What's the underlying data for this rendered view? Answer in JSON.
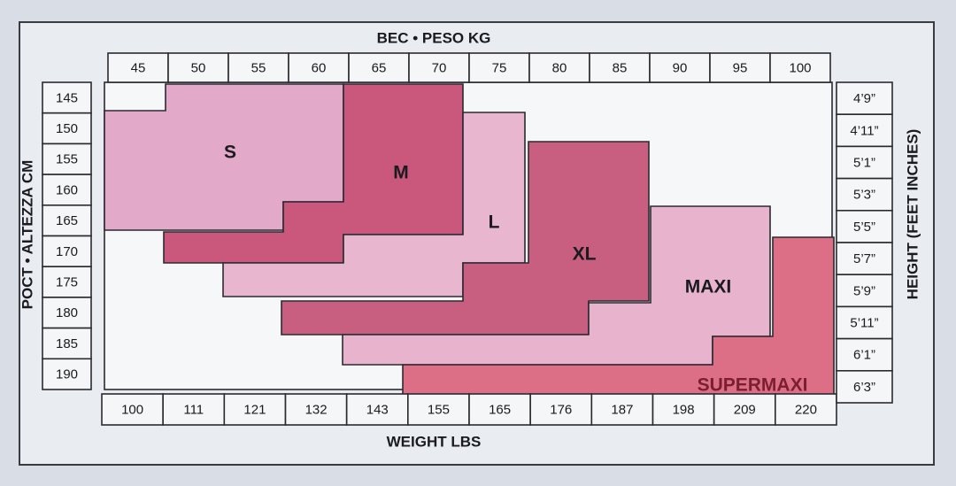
{
  "header": {
    "weight_kg_title": "BEC • PESO KG",
    "weight_lbs_title": "WEIGHT LBS",
    "height_cm_title": "POCT • ALTEZZA CM",
    "height_in_title": "HEIGHT (FEET INCHES)"
  },
  "weight_kg": [
    45,
    50,
    55,
    60,
    65,
    70,
    75,
    80,
    85,
    90,
    95,
    100
  ],
  "weight_lbs": [
    100,
    111,
    121,
    132,
    143,
    155,
    165,
    176,
    187,
    198,
    209,
    220
  ],
  "height_cm": [
    145,
    150,
    155,
    160,
    165,
    170,
    175,
    180,
    185,
    190
  ],
  "height_in": [
    "4’9”",
    "4’11”",
    "5’1”",
    "5’3”",
    "5’5”",
    "5’7”",
    "5’9”",
    "5’11”",
    "6’1”",
    "6’3”"
  ],
  "sizes": [
    "S",
    "M",
    "L",
    "XL",
    "MAXI",
    "SUPERMAXI"
  ]
}
